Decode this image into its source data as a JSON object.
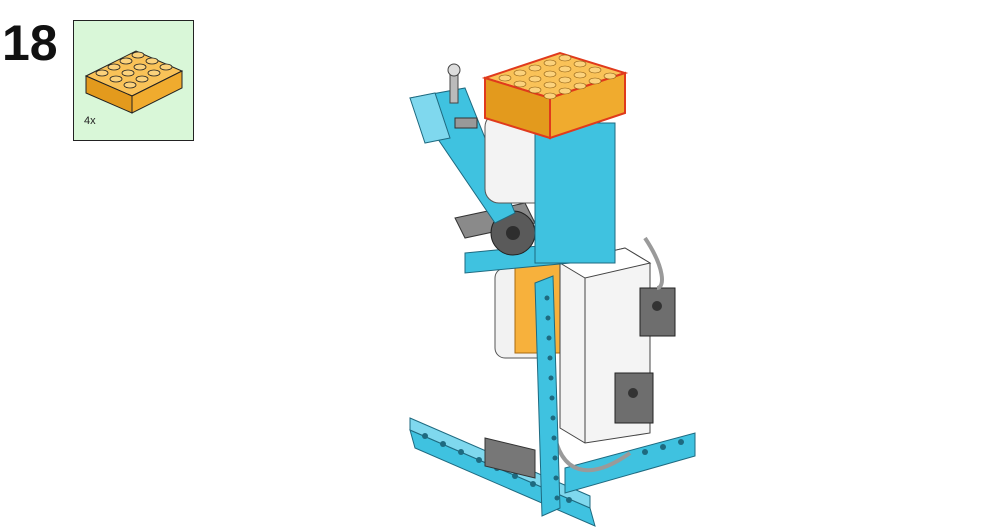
{
  "step": {
    "number": "18"
  },
  "parts_list": {
    "items": [
      {
        "part": "orange-2x4-brick",
        "color": "#f5a623",
        "quantity": "4x"
      }
    ]
  },
  "colors": {
    "azure": "#3fc2e0",
    "orange": "#f7b13c",
    "green": "#4caf50",
    "dark_gray": "#6e6e6e",
    "white": "#f4f4f4"
  }
}
